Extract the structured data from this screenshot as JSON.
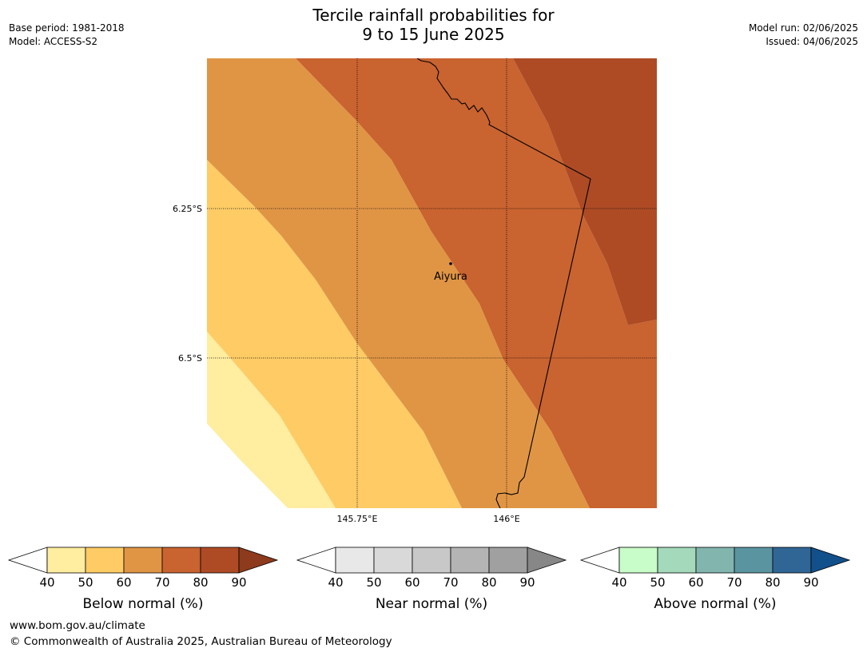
{
  "header": {
    "title_line1": "Tercile rainfall probabilities for",
    "title_line2": "9 to 15 June 2025",
    "base_period": "Base period: 1981-2018",
    "model": "Model: ACCESS-S2",
    "model_run": "Model run: 02/06/2025",
    "issued": "Issued: 04/06/2025"
  },
  "map": {
    "lat_labels": [
      "6.25°S",
      "6.5°S"
    ],
    "lon_labels": [
      "145.75°E",
      "146°E"
    ],
    "place_label": "Aiyura",
    "zone_colors": [
      "#ffeda0",
      "#fecb65",
      "#e09545",
      "#c96330",
      "#ae4b25"
    ]
  },
  "legends": [
    {
      "label": "Below normal (%)",
      "ticks": [
        "40",
        "50",
        "60",
        "70",
        "80",
        "90"
      ],
      "colors": [
        "#ffffff",
        "#ffeda0",
        "#fecb65",
        "#e09545",
        "#c96330",
        "#ae4b25",
        "#8e3a1c"
      ]
    },
    {
      "label": "Near normal (%)",
      "ticks": [
        "40",
        "50",
        "60",
        "70",
        "80",
        "90"
      ],
      "colors": [
        "#ffffff",
        "#e8e8e8",
        "#d9d9d9",
        "#c8c8c8",
        "#b4b4b4",
        "#a0a0a0",
        "#878787"
      ]
    },
    {
      "label": "Above normal (%)",
      "ticks": [
        "40",
        "50",
        "60",
        "70",
        "80",
        "90"
      ],
      "colors": [
        "#ffffff",
        "#c8fcc8",
        "#a4d9bb",
        "#82b5ae",
        "#5a94a1",
        "#306695",
        "#12508c"
      ]
    }
  ],
  "footer": {
    "url": "www.bom.gov.au/climate",
    "copyright": "© Commonwealth of Australia 2025, Australian Bureau of Meteorology"
  }
}
